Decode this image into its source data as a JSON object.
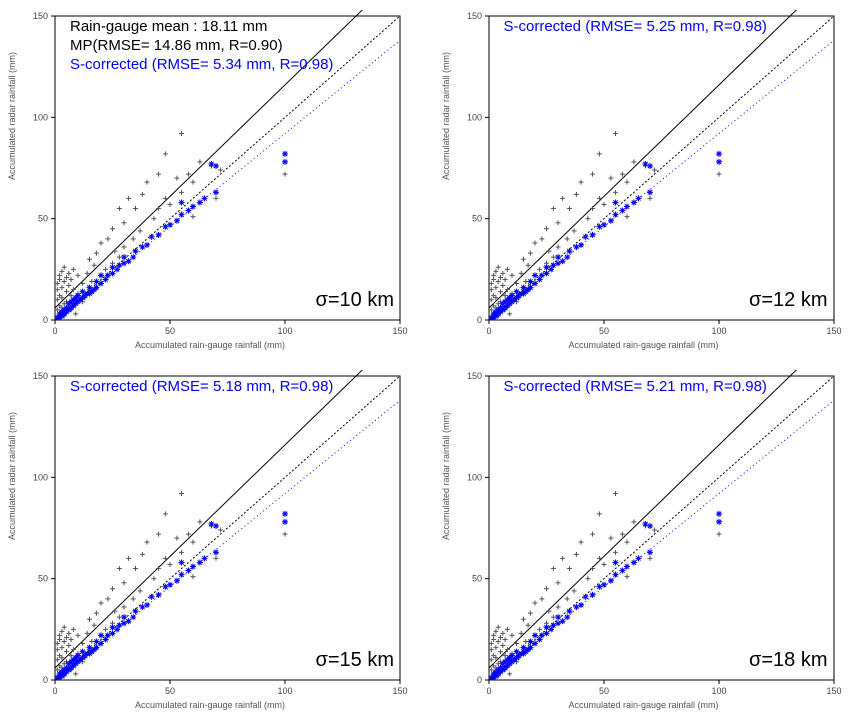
{
  "figure": {
    "panels": [
      {
        "id": "p10",
        "sigma_label": "σ=10 km",
        "header_lines": [
          {
            "text": "Rain-gauge mean : 18.11 mm",
            "color": "#000000"
          },
          {
            "text": "MP(RMSE= 14.86 mm, R=0.90)",
            "color": "#000000"
          },
          {
            "text": "S-corrected (RMSE= 5.34 mm, R=0.98)",
            "color": "#0000ff"
          }
        ]
      },
      {
        "id": "p12",
        "sigma_label": "σ=12 km",
        "header_lines": [
          {
            "text": "S-corrected (RMSE= 5.25 mm, R=0.98)",
            "color": "#0000ff"
          }
        ]
      },
      {
        "id": "p15",
        "sigma_label": "σ=15 km",
        "header_lines": [
          {
            "text": "S-corrected (RMSE= 5.18 mm, R=0.98)",
            "color": "#0000ff"
          }
        ]
      },
      {
        "id": "p18",
        "sigma_label": "σ=18 km",
        "header_lines": [
          {
            "text": "S-corrected (RMSE= 5.21 mm, R=0.98)",
            "color": "#0000ff"
          }
        ]
      }
    ],
    "common": {
      "type": "scatter",
      "xlabel": "Accumulated rain-gauge rainfall (mm)",
      "ylabel": "Accumulated radar rainfall (mm)",
      "xlim": [
        0,
        150
      ],
      "ylim": [
        0,
        150
      ],
      "ticks": [
        0,
        50,
        100,
        150
      ],
      "tick_fontsize": 9,
      "label_fontsize": 9,
      "background_color": "#ffffff",
      "axis_color": "#000000",
      "marker_size": 5,
      "series": {
        "mp": {
          "color": "#555555",
          "marker": "plus",
          "fit_slope": 1.1,
          "fit_intercept": 6
        },
        "scor": {
          "color": "#0000ff",
          "marker": "asterisk",
          "fit_slope": 0.92,
          "fit_intercept": 0
        }
      },
      "identity_line": {
        "color": "#000000",
        "dash": "2,2"
      },
      "mp_points": [
        [
          1,
          2
        ],
        [
          1,
          5
        ],
        [
          1,
          10
        ],
        [
          1,
          15
        ],
        [
          1,
          18
        ],
        [
          2,
          1
        ],
        [
          2,
          7
        ],
        [
          2,
          12
        ],
        [
          2,
          20
        ],
        [
          2,
          22
        ],
        [
          3,
          3
        ],
        [
          3,
          6
        ],
        [
          3,
          11
        ],
        [
          3,
          16
        ],
        [
          3,
          24
        ],
        [
          4,
          2
        ],
        [
          4,
          8
        ],
        [
          4,
          19
        ],
        [
          4,
          26
        ],
        [
          5,
          4
        ],
        [
          5,
          9
        ],
        [
          5,
          14
        ],
        [
          5,
          21
        ],
        [
          6,
          6
        ],
        [
          6,
          17
        ],
        [
          6,
          23
        ],
        [
          7,
          5
        ],
        [
          7,
          12
        ],
        [
          7,
          20
        ],
        [
          8,
          8
        ],
        [
          8,
          15
        ],
        [
          8,
          25
        ],
        [
          9,
          3
        ],
        [
          9,
          10
        ],
        [
          10,
          13
        ],
        [
          10,
          22
        ],
        [
          12,
          9
        ],
        [
          12,
          18
        ],
        [
          13,
          11
        ],
        [
          14,
          23
        ],
        [
          15,
          14
        ],
        [
          15,
          30
        ],
        [
          16,
          19
        ],
        [
          17,
          27
        ],
        [
          18,
          16
        ],
        [
          18,
          33
        ],
        [
          20,
          22
        ],
        [
          20,
          38
        ],
        [
          22,
          25
        ],
        [
          23,
          40
        ],
        [
          25,
          28
        ],
        [
          25,
          45
        ],
        [
          26,
          34
        ],
        [
          28,
          31
        ],
        [
          28,
          55
        ],
        [
          30,
          36
        ],
        [
          30,
          48
        ],
        [
          32,
          60
        ],
        [
          34,
          40
        ],
        [
          35,
          55
        ],
        [
          37,
          44
        ],
        [
          38,
          62
        ],
        [
          40,
          37
        ],
        [
          40,
          68
        ],
        [
          43,
          50
        ],
        [
          45,
          55
        ],
        [
          45,
          72
        ],
        [
          48,
          60
        ],
        [
          48,
          82
        ],
        [
          50,
          57
        ],
        [
          53,
          70
        ],
        [
          55,
          63
        ],
        [
          55,
          92
        ],
        [
          58,
          72
        ],
        [
          60,
          51
        ],
        [
          60,
          68
        ],
        [
          63,
          78
        ],
        [
          68,
          76
        ],
        [
          70,
          60
        ],
        [
          72,
          74
        ],
        [
          100,
          78
        ],
        [
          100,
          72
        ]
      ],
      "scor_points": [
        [
          1,
          1
        ],
        [
          2,
          1
        ],
        [
          2,
          3
        ],
        [
          3,
          2
        ],
        [
          3,
          4
        ],
        [
          4,
          3
        ],
        [
          4,
          5
        ],
        [
          5,
          4
        ],
        [
          5,
          6
        ],
        [
          6,
          5
        ],
        [
          6,
          8
        ],
        [
          7,
          6
        ],
        [
          7,
          9
        ],
        [
          8,
          7
        ],
        [
          8,
          10
        ],
        [
          9,
          8
        ],
        [
          9,
          11
        ],
        [
          10,
          9
        ],
        [
          10,
          12
        ],
        [
          11,
          10
        ],
        [
          12,
          11
        ],
        [
          12,
          14
        ],
        [
          13,
          12
        ],
        [
          14,
          13
        ],
        [
          15,
          13
        ],
        [
          15,
          16
        ],
        [
          16,
          14
        ],
        [
          17,
          15
        ],
        [
          18,
          16
        ],
        [
          18,
          19
        ],
        [
          20,
          18
        ],
        [
          20,
          22
        ],
        [
          22,
          20
        ],
        [
          23,
          22
        ],
        [
          25,
          23
        ],
        [
          25,
          26
        ],
        [
          27,
          25
        ],
        [
          28,
          27
        ],
        [
          30,
          28
        ],
        [
          30,
          31
        ],
        [
          32,
          29
        ],
        [
          34,
          31
        ],
        [
          35,
          34
        ],
        [
          38,
          36
        ],
        [
          40,
          37
        ],
        [
          42,
          41
        ],
        [
          45,
          42
        ],
        [
          48,
          46
        ],
        [
          50,
          47
        ],
        [
          53,
          49
        ],
        [
          55,
          52
        ],
        [
          55,
          58
        ],
        [
          58,
          54
        ],
        [
          60,
          56
        ],
        [
          63,
          58
        ],
        [
          65,
          60
        ],
        [
          68,
          77
        ],
        [
          70,
          76
        ],
        [
          70,
          63
        ],
        [
          100,
          78
        ],
        [
          100,
          82
        ]
      ]
    }
  }
}
